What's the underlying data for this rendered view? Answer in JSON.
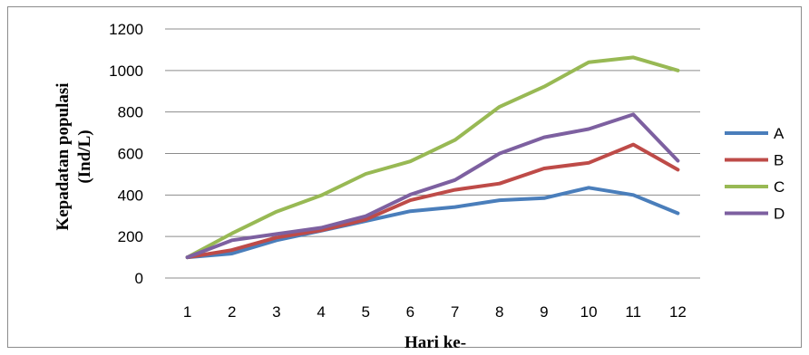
{
  "chart_data": {
    "type": "line",
    "x": [
      1,
      2,
      3,
      4,
      5,
      6,
      7,
      8,
      9,
      10,
      11,
      12
    ],
    "categories": [
      "1",
      "2",
      "3",
      "4",
      "5",
      "6",
      "7",
      "8",
      "9",
      "10",
      "11",
      "12"
    ],
    "series": [
      {
        "name": "A",
        "color": "#4a7ebb",
        "values": [
          100,
          118,
          182,
          228,
          275,
          322,
          342,
          375,
          385,
          435,
          400,
          312
        ]
      },
      {
        "name": "B",
        "color": "#be4b48",
        "values": [
          100,
          135,
          195,
          230,
          282,
          375,
          425,
          455,
          528,
          555,
          643,
          522
        ]
      },
      {
        "name": "C",
        "color": "#98b954",
        "values": [
          100,
          215,
          320,
          398,
          502,
          562,
          665,
          825,
          922,
          1040,
          1063,
          1000
        ]
      },
      {
        "name": "D",
        "color": "#7d60a0",
        "values": [
          100,
          182,
          212,
          242,
          298,
          402,
          472,
          600,
          678,
          718,
          788,
          565
        ]
      }
    ],
    "title": "",
    "xlabel": "Hari ke-",
    "ylabel": [
      "Kepadatan populasi",
      "(Ind/L)"
    ],
    "ylim": [
      0,
      1200
    ],
    "yticks": [
      "0",
      "200",
      "400",
      "600",
      "800",
      "1000",
      "1200"
    ],
    "grid": true,
    "legend_position": "right"
  }
}
